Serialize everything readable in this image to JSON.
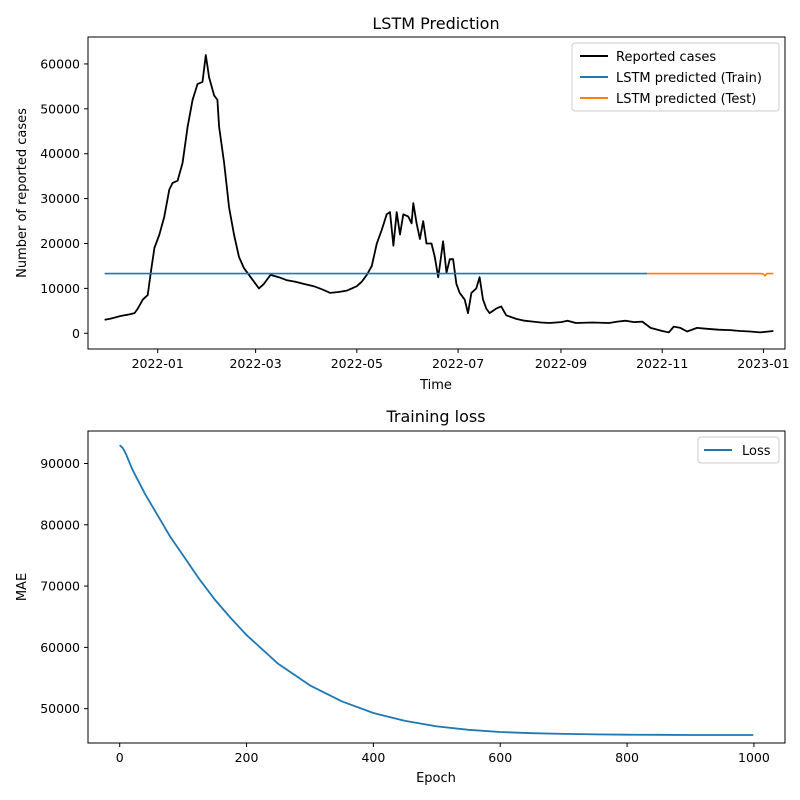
{
  "chart_data": [
    {
      "type": "line",
      "title": "LSTM Prediction",
      "xlabel": "Time",
      "ylabel": "Number of reported cases",
      "xlim": [
        "2021-11-20",
        "2023-01-14"
      ],
      "ylim": [
        -3500,
        66000
      ],
      "x_ticks": [
        "2022-01-01",
        "2022-03-01",
        "2022-05-01",
        "2022-07-01",
        "2022-09-01",
        "2022-11-01",
        "2023-01-01"
      ],
      "x_tick_labels": [
        "2022-01",
        "2022-03",
        "2022-05",
        "2022-07",
        "2022-09",
        "2022-11",
        "2023-01"
      ],
      "y_ticks": [
        0,
        10000,
        20000,
        30000,
        40000,
        50000,
        60000
      ],
      "grid": false,
      "legend": "top-right",
      "colors": {
        "reported": "#000000",
        "train": "#1f77b4",
        "test": "#ff7f0e"
      },
      "series": [
        {
          "name": "Reported cases",
          "points": [
            [
              "2021-11-30",
              3000
            ],
            [
              "2021-12-03",
              3200
            ],
            [
              "2021-12-06",
              3500
            ],
            [
              "2021-12-09",
              3800
            ],
            [
              "2021-12-12",
              4000
            ],
            [
              "2021-12-15",
              4200
            ],
            [
              "2021-12-18",
              4500
            ],
            [
              "2021-12-20",
              5500
            ],
            [
              "2021-12-23",
              7500
            ],
            [
              "2021-12-26",
              8500
            ],
            [
              "2021-12-28",
              14000
            ],
            [
              "2021-12-30",
              19000
            ],
            [
              "2022-01-02",
              22000
            ],
            [
              "2022-01-05",
              26000
            ],
            [
              "2022-01-08",
              32000
            ],
            [
              "2022-01-10",
              33500
            ],
            [
              "2022-01-13",
              34000
            ],
            [
              "2022-01-16",
              38000
            ],
            [
              "2022-01-19",
              46000
            ],
            [
              "2022-01-22",
              52000
            ],
            [
              "2022-01-25",
              55500
            ],
            [
              "2022-01-28",
              56000
            ],
            [
              "2022-01-30",
              62000
            ],
            [
              "2022-02-01",
              57000
            ],
            [
              "2022-02-04",
              53000
            ],
            [
              "2022-02-06",
              52000
            ],
            [
              "2022-02-07",
              46000
            ],
            [
              "2022-02-10",
              38000
            ],
            [
              "2022-02-13",
              28000
            ],
            [
              "2022-02-16",
              22000
            ],
            [
              "2022-02-19",
              17000
            ],
            [
              "2022-02-22",
              14500
            ],
            [
              "2022-02-25",
              13000
            ],
            [
              "2022-02-28",
              11500
            ],
            [
              "2022-03-03",
              10000
            ],
            [
              "2022-03-06",
              11000
            ],
            [
              "2022-03-10",
              13000
            ],
            [
              "2022-03-15",
              12500
            ],
            [
              "2022-03-20",
              11800
            ],
            [
              "2022-03-25",
              11500
            ],
            [
              "2022-03-30",
              11000
            ],
            [
              "2022-04-05",
              10500
            ],
            [
              "2022-04-10",
              9800
            ],
            [
              "2022-04-15",
              9000
            ],
            [
              "2022-04-20",
              9200
            ],
            [
              "2022-04-25",
              9500
            ],
            [
              "2022-04-28",
              10000
            ],
            [
              "2022-05-01",
              10500
            ],
            [
              "2022-05-04",
              11500
            ],
            [
              "2022-05-07",
              13000
            ],
            [
              "2022-05-10",
              15000
            ],
            [
              "2022-05-13",
              20000
            ],
            [
              "2022-05-16",
              23000
            ],
            [
              "2022-05-19",
              26500
            ],
            [
              "2022-05-21",
              27000
            ],
            [
              "2022-05-23",
              19500
            ],
            [
              "2022-05-25",
              27000
            ],
            [
              "2022-05-27",
              22000
            ],
            [
              "2022-05-29",
              26500
            ],
            [
              "2022-06-01",
              26000
            ],
            [
              "2022-06-03",
              24500
            ],
            [
              "2022-06-04",
              29000
            ],
            [
              "2022-06-06",
              24500
            ],
            [
              "2022-06-08",
              21000
            ],
            [
              "2022-06-10",
              25000
            ],
            [
              "2022-06-12",
              20000
            ],
            [
              "2022-06-15",
              20000
            ],
            [
              "2022-06-17",
              17000
            ],
            [
              "2022-06-19",
              12500
            ],
            [
              "2022-06-20",
              15000
            ],
            [
              "2022-06-22",
              20500
            ],
            [
              "2022-06-24",
              13500
            ],
            [
              "2022-06-26",
              16500
            ],
            [
              "2022-06-28",
              16500
            ],
            [
              "2022-06-30",
              11000
            ],
            [
              "2022-07-02",
              9000
            ],
            [
              "2022-07-05",
              7500
            ],
            [
              "2022-07-07",
              4500
            ],
            [
              "2022-07-09",
              9000
            ],
            [
              "2022-07-12",
              10000
            ],
            [
              "2022-07-14",
              12500
            ],
            [
              "2022-07-16",
              7500
            ],
            [
              "2022-07-18",
              5500
            ],
            [
              "2022-07-20",
              4500
            ],
            [
              "2022-07-24",
              5500
            ],
            [
              "2022-07-27",
              6000
            ],
            [
              "2022-07-30",
              4000
            ],
            [
              "2022-08-05",
              3200
            ],
            [
              "2022-08-10",
              2800
            ],
            [
              "2022-08-15",
              2600
            ],
            [
              "2022-08-20",
              2400
            ],
            [
              "2022-08-25",
              2300
            ],
            [
              "2022-09-01",
              2500
            ],
            [
              "2022-09-05",
              2800
            ],
            [
              "2022-09-10",
              2300
            ],
            [
              "2022-09-20",
              2400
            ],
            [
              "2022-09-30",
              2300
            ],
            [
              "2022-10-05",
              2600
            ],
            [
              "2022-10-10",
              2800
            ],
            [
              "2022-10-15",
              2500
            ],
            [
              "2022-10-20",
              2600
            ],
            [
              "2022-10-25",
              1200
            ],
            [
              "2022-11-01",
              500
            ],
            [
              "2022-11-05",
              200
            ],
            [
              "2022-11-08",
              1500
            ],
            [
              "2022-11-12",
              1200
            ],
            [
              "2022-11-16",
              400
            ],
            [
              "2022-11-22",
              1200
            ],
            [
              "2022-11-28",
              1000
            ],
            [
              "2022-12-05",
              800
            ],
            [
              "2022-12-12",
              700
            ],
            [
              "2022-12-18",
              500
            ],
            [
              "2022-12-24",
              400
            ],
            [
              "2022-12-30",
              200
            ],
            [
              "2023-01-02",
              300
            ],
            [
              "2023-01-07",
              500
            ]
          ]
        },
        {
          "name": "LSTM predicted (Train)",
          "points": [
            [
              "2021-11-30",
              13300
            ],
            [
              "2022-10-23",
              13300
            ]
          ]
        },
        {
          "name": "LSTM predicted (Test)",
          "points": [
            [
              "2022-10-23",
              13300
            ],
            [
              "2022-12-30",
              13300
            ],
            [
              "2023-01-01",
              13200
            ],
            [
              "2023-01-02",
              12800
            ],
            [
              "2023-01-03",
              13300
            ],
            [
              "2023-01-07",
              13300
            ]
          ]
        }
      ]
    },
    {
      "type": "line",
      "title": "Training loss",
      "xlabel": "Epoch",
      "ylabel": "MAE",
      "xlim": [
        -50,
        1049
      ],
      "ylim": [
        44400,
        95300
      ],
      "x_ticks": [
        0,
        200,
        400,
        600,
        800,
        1000
      ],
      "y_ticks": [
        50000,
        60000,
        70000,
        80000,
        90000
      ],
      "grid": false,
      "legend": "top-right",
      "colors": {
        "loss": "#1f77b4"
      },
      "series": [
        {
          "name": "Loss",
          "x": [
            0,
            5,
            10,
            20,
            40,
            60,
            80,
            100,
            125,
            150,
            175,
            200,
            250,
            300,
            350,
            400,
            450,
            500,
            550,
            600,
            650,
            700,
            750,
            800,
            850,
            900,
            950,
            999
          ],
          "values": [
            93000,
            92500,
            91500,
            89000,
            85000,
            81500,
            78000,
            75000,
            71200,
            67800,
            64800,
            62000,
            57300,
            53800,
            51200,
            49300,
            48000,
            47100,
            46550,
            46200,
            46000,
            45880,
            45800,
            45760,
            45730,
            45710,
            45700,
            45700
          ]
        }
      ]
    }
  ]
}
